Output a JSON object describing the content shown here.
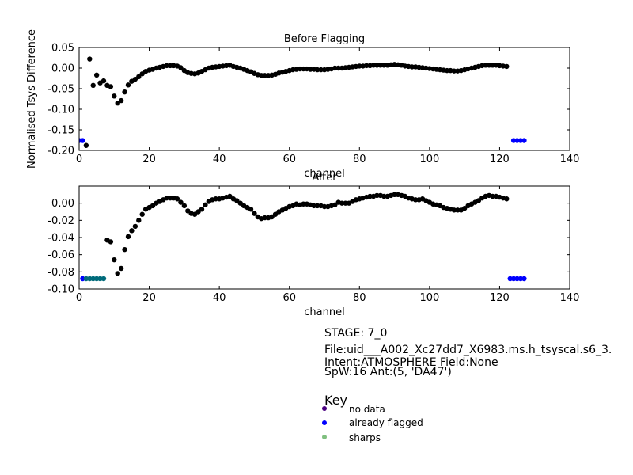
{
  "chart_data": [
    {
      "type": "scatter",
      "title": "Before Flagging",
      "xlabel": "channel",
      "ylabel": "Normalised Tsys Difference",
      "xlim": [
        0,
        140
      ],
      "ylim": [
        -0.2,
        0.05
      ],
      "xticks": [
        0,
        20,
        40,
        60,
        80,
        100,
        120,
        140
      ],
      "yticks": [
        0.05,
        0.0,
        -0.05,
        -0.1,
        -0.15,
        -0.2
      ],
      "xtick_labels": [
        "0",
        "20",
        "40",
        "60",
        "80",
        "100",
        "120",
        "140"
      ],
      "ytick_labels": [
        "0.05",
        "0.00",
        "-0.05",
        "-0.10",
        "-0.15",
        "-0.20"
      ],
      "series": [
        {
          "name": "data",
          "color": "#000000",
          "x": [
            2,
            3,
            4,
            5,
            6,
            7,
            8,
            9,
            10,
            11,
            12,
            13,
            14,
            15,
            16,
            17,
            18,
            19,
            20,
            21,
            22,
            23,
            24,
            25,
            26,
            27,
            28,
            29,
            30,
            31,
            32,
            33,
            34,
            35,
            36,
            37,
            38,
            39,
            40,
            41,
            42,
            43,
            44,
            45,
            46,
            47,
            48,
            49,
            50,
            51,
            52,
            53,
            54,
            55,
            56,
            57,
            58,
            59,
            60,
            61,
            62,
            63,
            64,
            65,
            66,
            67,
            68,
            69,
            70,
            71,
            72,
            73,
            74,
            75,
            76,
            77,
            78,
            79,
            80,
            81,
            82,
            83,
            84,
            85,
            86,
            87,
            88,
            89,
            90,
            91,
            92,
            93,
            94,
            95,
            96,
            97,
            98,
            99,
            100,
            101,
            102,
            103,
            104,
            105,
            106,
            107,
            108,
            109,
            110,
            111,
            112,
            113,
            114,
            115,
            116,
            117,
            118,
            119,
            120,
            121,
            122
          ],
          "y": [
            -0.188,
            0.022,
            -0.042,
            -0.017,
            -0.036,
            -0.031,
            -0.042,
            -0.045,
            -0.068,
            -0.085,
            -0.079,
            -0.058,
            -0.041,
            -0.032,
            -0.027,
            -0.021,
            -0.014,
            -0.008,
            -0.005,
            -0.003,
            0.0,
            0.002,
            0.004,
            0.006,
            0.006,
            0.006,
            0.005,
            0.001,
            -0.006,
            -0.011,
            -0.013,
            -0.014,
            -0.012,
            -0.008,
            -0.004,
            0.0,
            0.002,
            0.003,
            0.004,
            0.005,
            0.006,
            0.007,
            0.004,
            0.002,
            0.0,
            -0.003,
            -0.006,
            -0.009,
            -0.013,
            -0.016,
            -0.018,
            -0.018,
            -0.018,
            -0.017,
            -0.015,
            -0.012,
            -0.01,
            -0.008,
            -0.006,
            -0.004,
            -0.003,
            -0.002,
            -0.002,
            -0.002,
            -0.003,
            -0.003,
            -0.004,
            -0.004,
            -0.004,
            -0.003,
            -0.002,
            0.0,
            0.0,
            0.0,
            0.001,
            0.002,
            0.003,
            0.004,
            0.005,
            0.005,
            0.006,
            0.006,
            0.007,
            0.007,
            0.007,
            0.007,
            0.007,
            0.008,
            0.009,
            0.008,
            0.007,
            0.005,
            0.004,
            0.003,
            0.003,
            0.002,
            0.001,
            0.0,
            -0.001,
            -0.002,
            -0.003,
            -0.004,
            -0.005,
            -0.006,
            -0.006,
            -0.007,
            -0.007,
            -0.006,
            -0.004,
            -0.002,
            0.0,
            0.002,
            0.004,
            0.006,
            0.007,
            0.007,
            0.007,
            0.007,
            0.006,
            0.005,
            0.004
          ]
        },
        {
          "name": "already flagged",
          "color": "#0000ff",
          "x": [
            0,
            1,
            124,
            125,
            126,
            127
          ],
          "y": [
            -0.176,
            -0.176,
            -0.176,
            -0.176,
            -0.176,
            -0.176
          ]
        }
      ]
    },
    {
      "type": "scatter",
      "title": "After",
      "xlabel": "channel",
      "ylabel": "",
      "xlim": [
        0,
        140
      ],
      "ylim": [
        -0.1,
        0.02
      ],
      "xticks": [
        0,
        20,
        40,
        60,
        80,
        100,
        120,
        140
      ],
      "yticks": [
        0.0,
        -0.02,
        -0.04,
        -0.06,
        -0.08,
        -0.1
      ],
      "xtick_labels": [
        "0",
        "20",
        "40",
        "60",
        "80",
        "100",
        "120",
        "140"
      ],
      "ytick_labels": [
        "0.00",
        "-0.02",
        "-0.04",
        "-0.06",
        "-0.08",
        "-0.10"
      ],
      "series": [
        {
          "name": "data",
          "color": "#000000",
          "x": [
            8,
            9,
            10,
            11,
            12,
            13,
            14,
            15,
            16,
            17,
            18,
            19,
            20,
            21,
            22,
            23,
            24,
            25,
            26,
            27,
            28,
            29,
            30,
            31,
            32,
            33,
            34,
            35,
            36,
            37,
            38,
            39,
            40,
            41,
            42,
            43,
            44,
            45,
            46,
            47,
            48,
            49,
            50,
            51,
            52,
            53,
            54,
            55,
            56,
            57,
            58,
            59,
            60,
            61,
            62,
            63,
            64,
            65,
            66,
            67,
            68,
            69,
            70,
            71,
            72,
            73,
            74,
            75,
            76,
            77,
            78,
            79,
            80,
            81,
            82,
            83,
            84,
            85,
            86,
            87,
            88,
            89,
            90,
            91,
            92,
            93,
            94,
            95,
            96,
            97,
            98,
            99,
            100,
            101,
            102,
            103,
            104,
            105,
            106,
            107,
            108,
            109,
            110,
            111,
            112,
            113,
            114,
            115,
            116,
            117,
            118,
            119,
            120,
            121,
            122
          ],
          "y": [
            -0.043,
            -0.045,
            -0.066,
            -0.082,
            -0.076,
            -0.054,
            -0.039,
            -0.032,
            -0.027,
            -0.02,
            -0.013,
            -0.007,
            -0.005,
            -0.003,
            0.0,
            0.002,
            0.004,
            0.006,
            0.006,
            0.006,
            0.005,
            0.001,
            -0.003,
            -0.009,
            -0.012,
            -0.013,
            -0.01,
            -0.007,
            -0.002,
            0.002,
            0.004,
            0.005,
            0.005,
            0.006,
            0.007,
            0.008,
            0.005,
            0.003,
            0.0,
            -0.003,
            -0.005,
            -0.007,
            -0.012,
            -0.016,
            -0.018,
            -0.017,
            -0.017,
            -0.016,
            -0.013,
            -0.01,
            -0.008,
            -0.006,
            -0.004,
            -0.003,
            -0.001,
            -0.002,
            -0.001,
            -0.001,
            -0.002,
            -0.003,
            -0.003,
            -0.003,
            -0.004,
            -0.004,
            -0.003,
            -0.002,
            0.001,
            0.0,
            0.0,
            0.0,
            0.002,
            0.004,
            0.005,
            0.006,
            0.007,
            0.008,
            0.008,
            0.009,
            0.009,
            0.008,
            0.008,
            0.009,
            0.01,
            0.01,
            0.009,
            0.008,
            0.006,
            0.005,
            0.004,
            0.004,
            0.005,
            0.003,
            0.001,
            -0.001,
            -0.002,
            -0.003,
            -0.005,
            -0.006,
            -0.007,
            -0.008,
            -0.008,
            -0.008,
            -0.006,
            -0.003,
            -0.001,
            0.001,
            0.003,
            0.006,
            0.008,
            0.009,
            0.008,
            0.008,
            0.007,
            0.006,
            0.005
          ]
        },
        {
          "name": "already flagged",
          "color": "#0000ff",
          "x": [
            1,
            123,
            124,
            125,
            126,
            127
          ],
          "y": [
            -0.088,
            -0.088,
            -0.088,
            -0.088,
            -0.088,
            -0.088
          ]
        },
        {
          "name": "sharps",
          "color": "#006b7b",
          "x": [
            2,
            3,
            4,
            5,
            6,
            7
          ],
          "y": [
            -0.088,
            -0.088,
            -0.088,
            -0.088,
            -0.088,
            -0.088
          ]
        }
      ]
    }
  ],
  "info": {
    "stage": "STAGE: 7_0",
    "file": "File:uid___A002_Xc27dd7_X6983.ms.h_tsyscal.s6_3.",
    "intent": "Intent:ATMOSPHERE Field:None",
    "spw": "SpW:16 Ant:(5, 'DA47')"
  },
  "key": {
    "title": "Key",
    "items": [
      {
        "label": "no data",
        "color": "#4b0082"
      },
      {
        "label": "already flagged",
        "color": "#0000ff"
      },
      {
        "label": "sharps",
        "color": "#7fbf7f"
      }
    ]
  }
}
